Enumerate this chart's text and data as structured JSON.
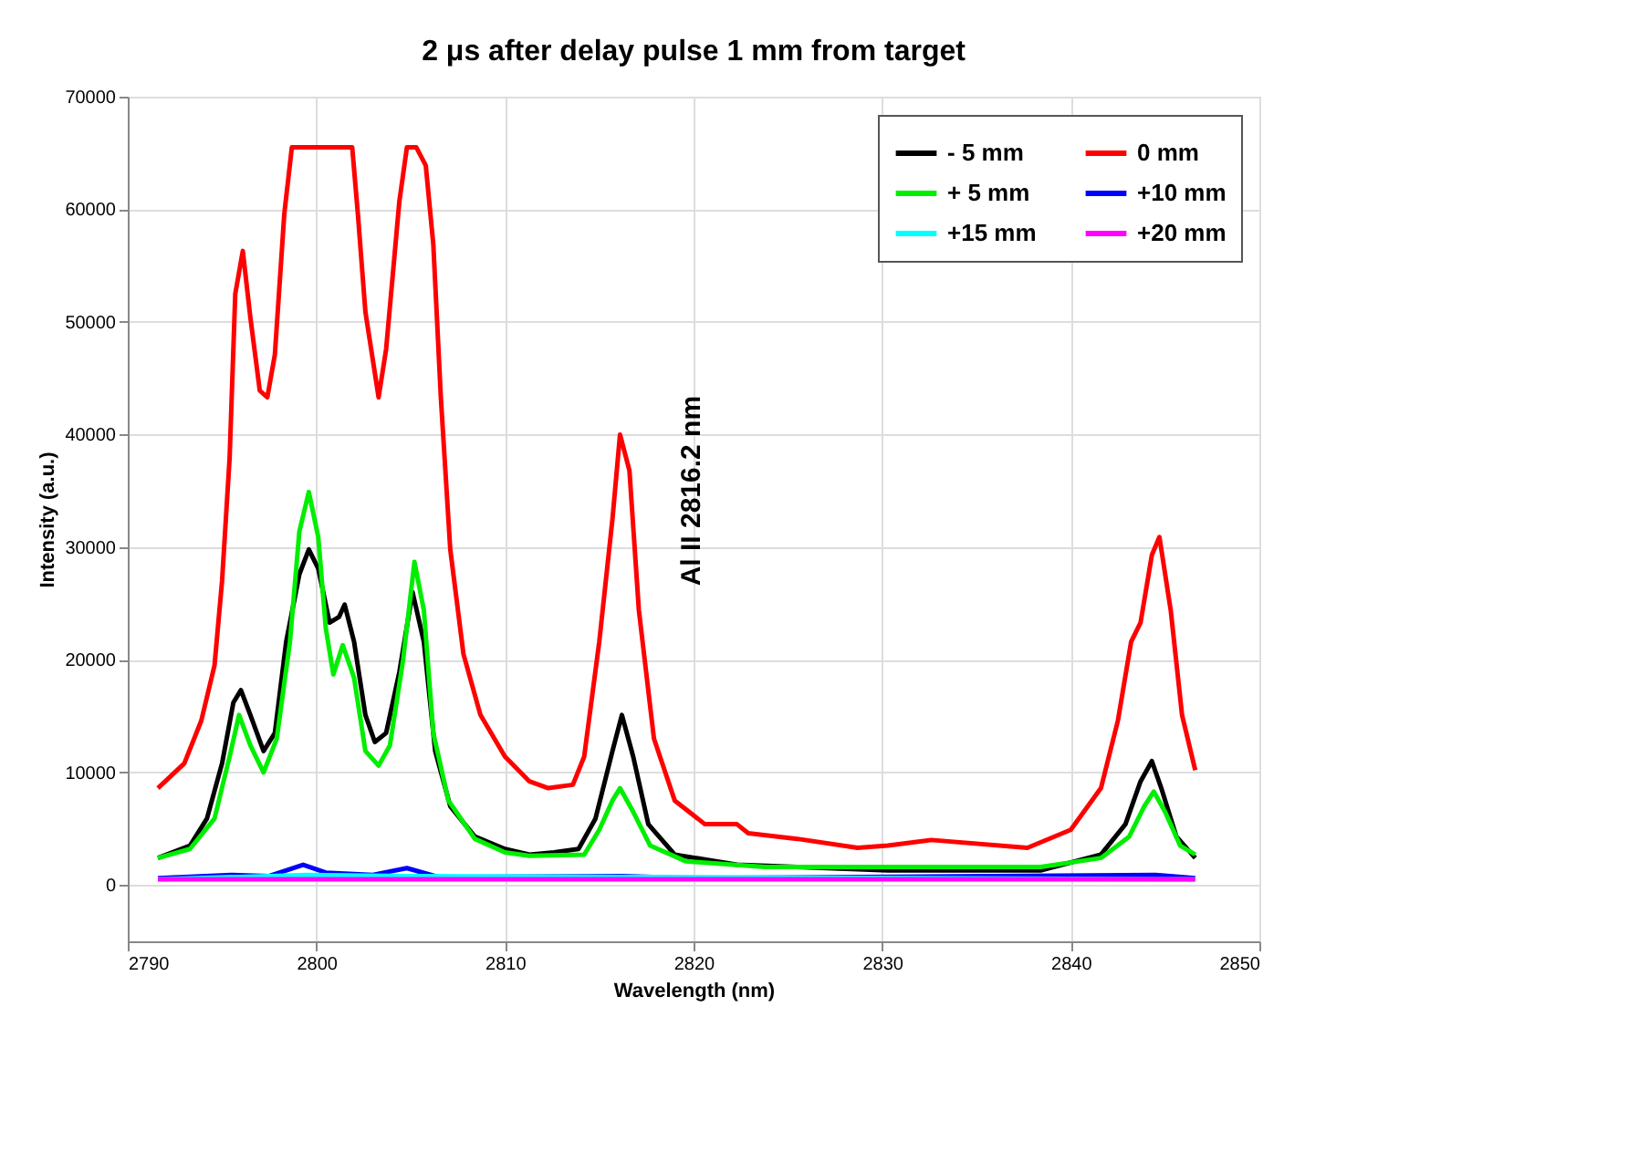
{
  "chart_data": {
    "type": "line",
    "title": "2 μs after delay pulse   1 mm from target",
    "xlabel": "Wavelength (nm)",
    "ylabel": "Intensity (a.u.)",
    "xlim": [
      2790,
      2850
    ],
    "xticks": [
      2790,
      2800,
      2810,
      2820,
      2830,
      2840,
      2850
    ],
    "ylim": [
      -5000,
      70000
    ],
    "yticks": [
      0,
      10000,
      20000,
      30000,
      40000,
      50000,
      60000,
      70000
    ],
    "grid": true,
    "legend": "top right",
    "marker": "none",
    "line_style": "solid",
    "annotations": [
      {
        "text": "Al II  2816.2 nm",
        "x": 2816.2,
        "y": 35000
      }
    ],
    "series": [
      {
        "name": "- 5 mm",
        "color": "#000000",
        "x": [
          2791.6,
          2793.3,
          2794.2,
          2795.0,
          2795.6,
          2796.0,
          2796.5,
          2797.2,
          2797.8,
          2798.4,
          2799.1,
          2799.6,
          2800.1,
          2800.7,
          2801.2,
          2801.5,
          2802.0,
          2802.6,
          2803.1,
          2803.7,
          2804.4,
          2805.1,
          2805.7,
          2806.3,
          2807.1,
          2808.4,
          2810.0,
          2811.3,
          2812.6,
          2813.9,
          2814.8,
          2815.7,
          2816.2,
          2816.8,
          2817.6,
          2819.0,
          2822.3,
          2830.3,
          2838.4,
          2841.6,
          2842.9,
          2843.7,
          2844.3,
          2844.8,
          2845.6,
          2846.6
        ],
        "values": [
          2400,
          3500,
          5900,
          10800,
          16200,
          17300,
          15100,
          11900,
          13500,
          21600,
          27600,
          29800,
          28100,
          23300,
          23800,
          24900,
          21600,
          15100,
          12700,
          13500,
          18900,
          26000,
          21600,
          11900,
          7000,
          4300,
          3200,
          2700,
          2900,
          3200,
          5900,
          11900,
          15100,
          11400,
          5400,
          2700,
          1800,
          1300,
          1300,
          2700,
          5400,
          9200,
          11000,
          8600,
          4300,
          2400
        ]
      },
      {
        "name": "0 mm",
        "color": "#ff0000",
        "x": [
          2791.6,
          2793.0,
          2793.9,
          2794.6,
          2795.0,
          2795.4,
          2795.7,
          2796.1,
          2796.5,
          2797.0,
          2797.4,
          2797.8,
          2798.3,
          2798.7,
          2801.9,
          2802.2,
          2802.6,
          2803.3,
          2803.7,
          2804.4,
          2804.8,
          2805.3,
          2805.8,
          2806.2,
          2806.6,
          2807.1,
          2807.8,
          2808.7,
          2810.0,
          2811.3,
          2812.3,
          2813.6,
          2814.2,
          2815.0,
          2815.7,
          2816.1,
          2816.6,
          2817.1,
          2817.9,
          2819.0,
          2820.6,
          2822.3,
          2822.9,
          2825.5,
          2828.7,
          2830.3,
          2832.6,
          2837.7,
          2840.0,
          2841.6,
          2842.5,
          2843.2,
          2843.7,
          2844.3,
          2844.7,
          2845.3,
          2845.9,
          2846.6
        ],
        "values": [
          8600,
          10800,
          14600,
          19500,
          27000,
          37900,
          52500,
          56300,
          50400,
          43900,
          43300,
          47100,
          59600,
          65500,
          65500,
          59600,
          50900,
          43300,
          47600,
          60700,
          65500,
          65500,
          63900,
          56900,
          43300,
          29800,
          20500,
          15100,
          11400,
          9200,
          8600,
          8900,
          11400,
          21600,
          32500,
          40000,
          36800,
          24400,
          13000,
          7500,
          5400,
          5400,
          4600,
          4100,
          3300,
          3500,
          4000,
          3300,
          4900,
          8600,
          14600,
          21600,
          23300,
          29300,
          30900,
          24400,
          15100,
          10200
        ]
      },
      {
        "name": "+  5 mm",
        "color": "#00ee00",
        "x": [
          2791.6,
          2793.3,
          2794.6,
          2795.4,
          2795.9,
          2796.5,
          2797.2,
          2797.9,
          2798.6,
          2799.1,
          2799.6,
          2800.1,
          2800.5,
          2800.9,
          2801.4,
          2802.0,
          2802.6,
          2803.3,
          2803.9,
          2804.6,
          2805.2,
          2805.7,
          2806.2,
          2807.0,
          2808.4,
          2810.0,
          2811.3,
          2814.2,
          2815.0,
          2815.7,
          2816.1,
          2816.8,
          2817.7,
          2819.6,
          2823.8,
          2838.4,
          2841.6,
          2843.1,
          2843.9,
          2844.4,
          2845.0,
          2845.8,
          2846.6
        ],
        "values": [
          2400,
          3200,
          5900,
          11400,
          15100,
          12400,
          10000,
          13000,
          21600,
          31400,
          34900,
          30900,
          22800,
          18700,
          21300,
          18400,
          11900,
          10600,
          12400,
          20000,
          28700,
          24400,
          13500,
          7500,
          4100,
          2900,
          2600,
          2700,
          4900,
          7500,
          8600,
          6500,
          3500,
          2100,
          1600,
          1600,
          2400,
          4300,
          7000,
          8300,
          6500,
          3500,
          2700
        ]
      },
      {
        "name": "+10 mm",
        "color": "#0000ff",
        "x": [
          2791.6,
          2795.5,
          2797.5,
          2799.3,
          2800.5,
          2803.0,
          2804.8,
          2806.5,
          2816.2,
          2820.0,
          2844.5,
          2846.6
        ],
        "values": [
          600,
          900,
          800,
          1800,
          1100,
          900,
          1500,
          700,
          800,
          600,
          900,
          600
        ]
      },
      {
        "name": "+15 mm",
        "color": "#00ffff",
        "x": [
          2791.6,
          2799.5,
          2805.0,
          2846.6
        ],
        "values": [
          500,
          900,
          800,
          500
        ]
      },
      {
        "name": "+20 mm",
        "color": "#ff00ff",
        "x": [
          2791.6,
          2820.0,
          2846.6
        ],
        "values": [
          500,
          500,
          500
        ]
      }
    ]
  }
}
